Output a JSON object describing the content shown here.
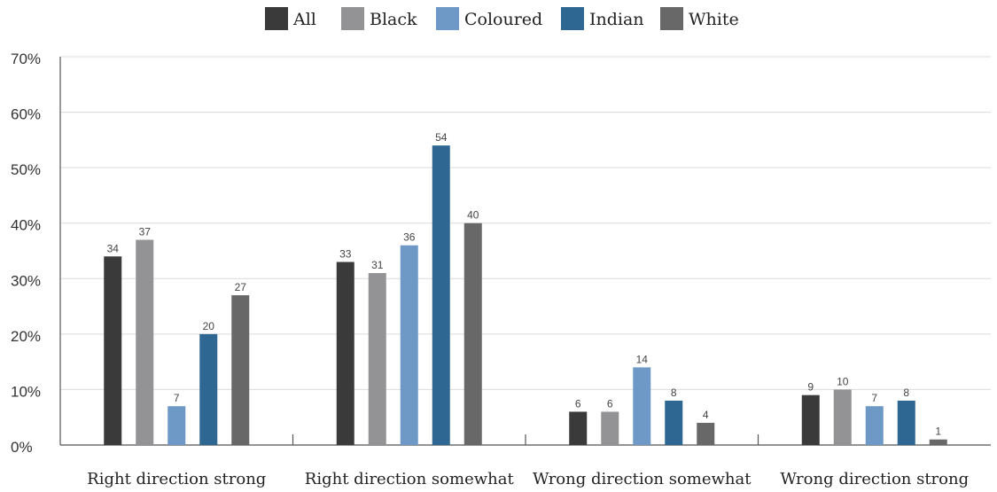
{
  "chart_data": {
    "type": "bar",
    "categories": [
      "Right direction strong",
      "Right direction somewhat",
      "Wrong direction somewhat",
      "Wrong direction strong"
    ],
    "series": [
      {
        "name": "All",
        "color": "#3a3a3a",
        "values": [
          34,
          33,
          6,
          9
        ]
      },
      {
        "name": "Black",
        "color": "#939396",
        "values": [
          37,
          31,
          6,
          10
        ]
      },
      {
        "name": "Coloured",
        "color": "#6e98c6",
        "values": [
          7,
          36,
          14,
          7
        ]
      },
      {
        "name": "Indian",
        "color": "#2e6791",
        "values": [
          20,
          54,
          8,
          8
        ]
      },
      {
        "name": "White",
        "color": "#686868",
        "values": [
          27,
          40,
          4,
          1
        ]
      }
    ],
    "ylim": [
      0,
      70
    ],
    "yticks": [
      "0%",
      "10%",
      "20%",
      "30%",
      "40%",
      "50%",
      "60%",
      "70%"
    ],
    "grid": true,
    "legend_position": "top-center",
    "title": "",
    "xlabel": "",
    "ylabel": ""
  }
}
